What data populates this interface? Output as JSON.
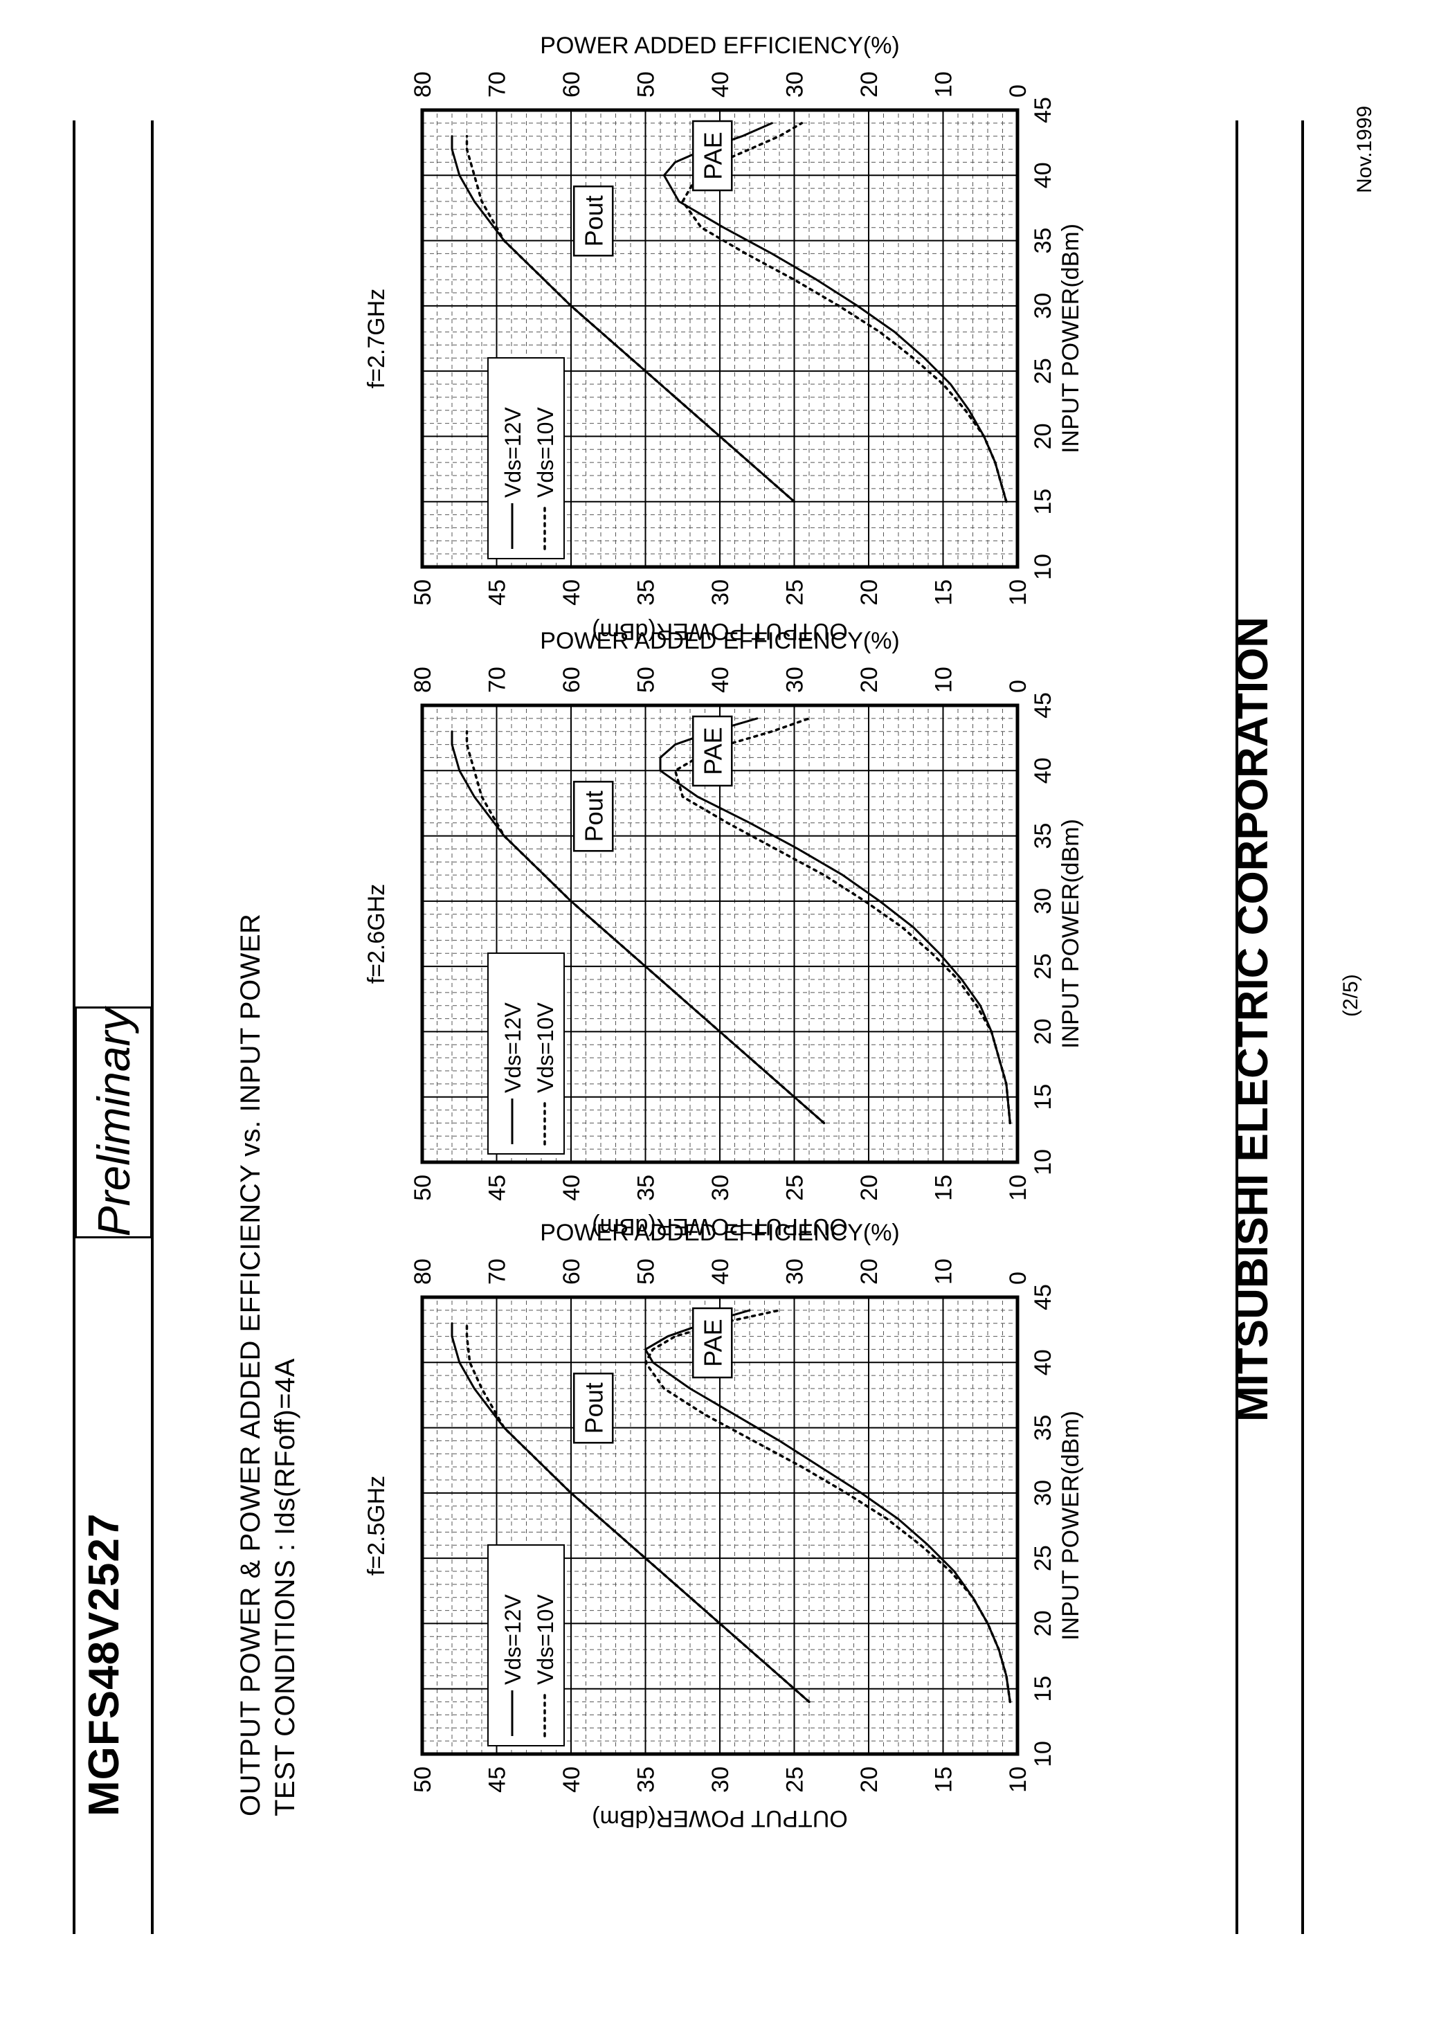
{
  "header": {
    "part_number": "MGFS48V2527",
    "status": "Preliminary"
  },
  "section": {
    "title": "OUTPUT POWER & POWER ADDED EFFICIENCY vs. INPUT POWER",
    "conditions": "TEST CONDITIONS : Ids(RFoff)=4A"
  },
  "footer": {
    "company": "MITSUBISHI ELECTRIC CORPORATION",
    "page": "(2/5)",
    "date": "Nov.1999"
  },
  "chart_data": [
    {
      "type": "line",
      "title": "f=2.5GHz",
      "xlabel": "INPUT POWER(dBm)",
      "ylabel": "OUTPUT POWER(dBm)",
      "y2label": "POWER ADDED EFFICIENCY(%)",
      "xlim": [
        10,
        45
      ],
      "ylim": [
        10,
        50
      ],
      "y2lim": [
        0,
        80
      ],
      "xticks": [
        10,
        15,
        20,
        25,
        30,
        35,
        40,
        45
      ],
      "yticks": [
        10,
        15,
        20,
        25,
        30,
        35,
        40,
        45,
        50
      ],
      "y2ticks": [
        0,
        10,
        20,
        30,
        40,
        50,
        60,
        70,
        80
      ],
      "grid": true,
      "legend": "top-left",
      "annotations": [
        "Pout",
        "PAE"
      ],
      "series": [
        {
          "name": "Vds=12V",
          "style": "solid",
          "axis": "Pout",
          "x": [
            14,
            20,
            25,
            30,
            35,
            38,
            40,
            42,
            43
          ],
          "y": [
            24,
            30,
            35,
            40,
            44.5,
            46.5,
            47.5,
            48,
            48
          ]
        },
        {
          "name": "Vds=10V",
          "style": "dotted",
          "axis": "Pout",
          "x": [
            14,
            20,
            25,
            30,
            35,
            38,
            40,
            42,
            43
          ],
          "y": [
            24,
            30,
            35,
            40,
            44.5,
            46,
            46.8,
            47,
            47
          ]
        },
        {
          "name": "Vds=12V",
          "style": "solid",
          "axis": "PAE",
          "x": [
            14,
            16,
            18,
            20,
            22,
            24,
            26,
            28,
            30,
            32,
            34,
            36,
            38,
            40,
            41,
            42,
            43,
            44
          ],
          "y": [
            1,
            1.5,
            2.5,
            4,
            6,
            8.5,
            12,
            16,
            21,
            26.5,
            32,
            38,
            44,
            49,
            50,
            47,
            42,
            36
          ]
        },
        {
          "name": "Vds=10V",
          "style": "dotted",
          "axis": "PAE",
          "x": [
            14,
            16,
            18,
            20,
            22,
            24,
            26,
            28,
            30,
            32,
            34,
            36,
            38,
            40,
            41,
            42,
            43,
            44
          ],
          "y": [
            1,
            1.5,
            2.5,
            4,
            6,
            9,
            13,
            17.5,
            23,
            29,
            35.5,
            42,
            47.5,
            50,
            49,
            46,
            40,
            32
          ]
        }
      ]
    },
    {
      "type": "line",
      "title": "f=2.6GHz",
      "xlabel": "INPUT POWER(dBm)",
      "ylabel": "OUTPUT POWER(dBm)",
      "y2label": "POWER ADDED EFFICIENCY(%)",
      "xlim": [
        10,
        45
      ],
      "ylim": [
        10,
        50
      ],
      "y2lim": [
        0,
        80
      ],
      "xticks": [
        10,
        15,
        20,
        25,
        30,
        35,
        40,
        45
      ],
      "yticks": [
        10,
        15,
        20,
        25,
        30,
        35,
        40,
        45,
        50
      ],
      "y2ticks": [
        0,
        10,
        20,
        30,
        40,
        50,
        60,
        70,
        80
      ],
      "grid": true,
      "legend": "top-left",
      "annotations": [
        "Pout",
        "PAE"
      ],
      "series": [
        {
          "name": "Vds=12V",
          "style": "solid",
          "axis": "Pout",
          "x": [
            13,
            20,
            25,
            30,
            35,
            38,
            40,
            42,
            43
          ],
          "y": [
            23,
            30,
            35,
            40,
            44.5,
            46.5,
            47.5,
            48,
            48
          ]
        },
        {
          "name": "Vds=10V",
          "style": "dotted",
          "axis": "Pout",
          "x": [
            13,
            20,
            25,
            30,
            35,
            38,
            40,
            42,
            43
          ],
          "y": [
            23,
            30,
            35,
            40,
            44.5,
            46,
            46.5,
            47,
            47
          ]
        },
        {
          "name": "Vds=12V",
          "style": "solid",
          "axis": "PAE",
          "x": [
            13,
            16,
            18,
            20,
            22,
            24,
            26,
            28,
            30,
            32,
            34,
            36,
            38,
            40,
            41,
            42,
            43,
            44
          ],
          "y": [
            1,
            1.5,
            2.5,
            3.5,
            5,
            7.5,
            10.5,
            14,
            18.5,
            23.5,
            29.5,
            36,
            43,
            48,
            48,
            46,
            41,
            35
          ]
        },
        {
          "name": "Vds=10V",
          "style": "dotted",
          "axis": "PAE",
          "x": [
            13,
            16,
            18,
            20,
            22,
            24,
            26,
            28,
            30,
            32,
            34,
            36,
            38,
            40,
            41,
            42,
            43,
            44
          ],
          "y": [
            1,
            1.5,
            2.5,
            3.5,
            5.5,
            8,
            11.5,
            15.5,
            20.5,
            26,
            32.5,
            39,
            45,
            46,
            43,
            39,
            33,
            28
          ]
        }
      ]
    },
    {
      "type": "line",
      "title": "f=2.7GHz",
      "xlabel": "INPUT POWER(dBm)",
      "ylabel": "OUTPUT POWER(dBm)",
      "y2label": "POWER ADDED EFFICIENCY(%)",
      "xlim": [
        10,
        45
      ],
      "ylim": [
        10,
        50
      ],
      "y2lim": [
        0,
        80
      ],
      "xticks": [
        10,
        15,
        20,
        25,
        30,
        35,
        40,
        45
      ],
      "yticks": [
        10,
        15,
        20,
        25,
        30,
        35,
        40,
        45,
        50
      ],
      "y2ticks": [
        0,
        10,
        20,
        30,
        40,
        50,
        60,
        70,
        80
      ],
      "grid": true,
      "legend": "top-left",
      "annotations": [
        "Pout",
        "PAE"
      ],
      "series": [
        {
          "name": "Vds=12V",
          "style": "solid",
          "axis": "Pout",
          "x": [
            15,
            20,
            25,
            30,
            35,
            38,
            40,
            42,
            43
          ],
          "y": [
            25,
            30,
            35,
            40,
            44.5,
            46.5,
            47.5,
            48,
            48
          ]
        },
        {
          "name": "Vds=10V",
          "style": "dotted",
          "axis": "Pout",
          "x": [
            15,
            20,
            25,
            30,
            35,
            38,
            40,
            42,
            43
          ],
          "y": [
            25,
            30,
            35,
            40,
            44.5,
            46,
            46.5,
            47,
            47
          ]
        },
        {
          "name": "Vds=12V",
          "style": "solid",
          "axis": "PAE",
          "x": [
            15,
            16,
            18,
            20,
            22,
            24,
            26,
            28,
            30,
            32,
            34,
            36,
            38,
            40,
            41,
            42,
            43,
            44
          ],
          "y": [
            1.5,
            2,
            3,
            4.5,
            6.5,
            9,
            12.5,
            16.5,
            21.5,
            27,
            33,
            39.5,
            45.5,
            47.5,
            46,
            42,
            37,
            33
          ]
        },
        {
          "name": "Vds=10V",
          "style": "dotted",
          "axis": "PAE",
          "x": [
            15,
            16,
            18,
            20,
            22,
            24,
            26,
            28,
            30,
            32,
            34,
            36,
            38,
            40,
            41,
            42,
            43,
            44
          ],
          "y": [
            1.5,
            2,
            3,
            4.5,
            7,
            10,
            14,
            18.5,
            24,
            30,
            36.5,
            42.5,
            45,
            43,
            40,
            36,
            32,
            29
          ]
        }
      ]
    }
  ]
}
